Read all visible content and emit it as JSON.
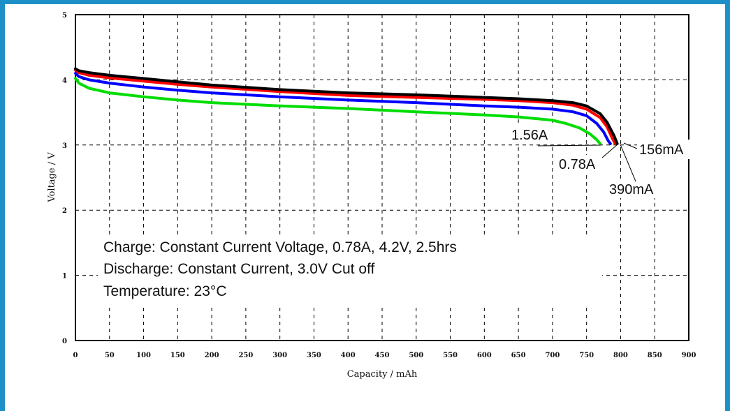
{
  "chart_data": {
    "type": "line",
    "xlabel": "Capacity / mAh",
    "ylabel": "Voltage / V",
    "xlim": [
      0,
      900
    ],
    "ylim": [
      0,
      5
    ],
    "x_ticks": [
      "0",
      "50",
      "100",
      "150",
      "200",
      "250",
      "300",
      "350",
      "400",
      "450",
      "500",
      "550",
      "600",
      "650",
      "700",
      "750",
      "800",
      "850",
      "900"
    ],
    "y_ticks": [
      "0",
      "1",
      "2",
      "3",
      "4",
      "5"
    ],
    "grid": true,
    "series": [
      {
        "name": "156mA",
        "color": "#000000",
        "x": [
          0,
          5,
          20,
          50,
          100,
          150,
          200,
          300,
          400,
          500,
          600,
          650,
          700,
          730,
          750,
          770,
          780,
          790,
          795
        ],
        "y": [
          4.17,
          4.14,
          4.11,
          4.07,
          4.02,
          3.97,
          3.92,
          3.85,
          3.8,
          3.77,
          3.73,
          3.71,
          3.68,
          3.65,
          3.6,
          3.48,
          3.35,
          3.15,
          3.02
        ]
      },
      {
        "name": "390mA",
        "color": "#ff0000",
        "x": [
          0,
          5,
          20,
          50,
          100,
          150,
          200,
          300,
          400,
          500,
          600,
          650,
          700,
          730,
          750,
          770,
          780,
          788,
          792
        ],
        "y": [
          4.15,
          4.11,
          4.07,
          4.03,
          3.98,
          3.93,
          3.89,
          3.82,
          3.76,
          3.73,
          3.7,
          3.68,
          3.65,
          3.61,
          3.55,
          3.42,
          3.28,
          3.1,
          3.02
        ]
      },
      {
        "name": "0.78A",
        "color": "#0000ff",
        "x": [
          0,
          5,
          20,
          50,
          100,
          150,
          200,
          300,
          400,
          500,
          600,
          650,
          700,
          730,
          750,
          765,
          775,
          782,
          785
        ],
        "y": [
          4.1,
          4.05,
          4.0,
          3.95,
          3.89,
          3.84,
          3.8,
          3.74,
          3.69,
          3.65,
          3.6,
          3.58,
          3.55,
          3.51,
          3.45,
          3.33,
          3.2,
          3.06,
          3.02
        ]
      },
      {
        "name": "1.56A",
        "color": "#00dd00",
        "x": [
          0,
          5,
          20,
          50,
          100,
          150,
          200,
          300,
          400,
          500,
          600,
          650,
          700,
          720,
          740,
          755,
          765,
          770
        ],
        "y": [
          4.02,
          3.95,
          3.87,
          3.8,
          3.74,
          3.69,
          3.65,
          3.6,
          3.56,
          3.51,
          3.46,
          3.43,
          3.38,
          3.33,
          3.26,
          3.17,
          3.08,
          3.02
        ]
      }
    ],
    "annotations": [
      {
        "text": "1.56A",
        "x": 720,
        "y": 3.15
      },
      {
        "text": "0.78A",
        "x": 770,
        "y": 2.7
      },
      {
        "text": "390mA",
        "x": 840,
        "y": 2.35
      },
      {
        "text": "156mA",
        "x": 855,
        "y": 2.95
      }
    ],
    "notes": [
      "Charge: Constant Current Voltage, 0.78A, 4.2V, 2.5hrs",
      "Discharge: Constant Current, 3.0V Cut off",
      "Temperature: 23°C"
    ]
  }
}
